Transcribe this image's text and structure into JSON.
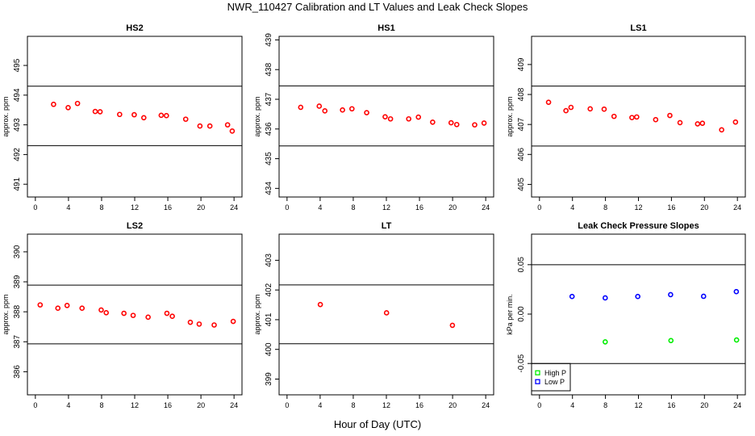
{
  "figure": {
    "title": "NWR_110427  Calibration and LT Values and Leak Check Slopes",
    "xlabel": "Hour of Day (UTC)"
  },
  "colors": {
    "cal_points": "#ff0000",
    "high_p": "#00ee00",
    "low_p": "#0000ff",
    "limit_lines": "#000000"
  },
  "chart_data": [
    {
      "type": "scatter",
      "title": "HS2",
      "ylabel": "approx. ppm",
      "xlim": [
        0,
        24
      ],
      "xticks": [
        "0",
        "4",
        "8",
        "12",
        "16",
        "20",
        "24"
      ],
      "ylim": [
        490.57,
        495.98
      ],
      "yticks": [
        "491",
        "492",
        "493",
        "494",
        "495"
      ],
      "limit_lines": [
        494.3,
        492.3
      ],
      "grid": false,
      "series": [
        {
          "color": "#ff0000",
          "x": [
            2.2,
            3.96,
            5.09,
            7.23,
            7.82,
            10.18,
            11.94,
            13.1,
            15.2,
            15.83,
            18.16,
            19.88,
            21.08,
            23.22,
            23.78
          ],
          "y": [
            493.69,
            493.58,
            493.72,
            493.45,
            493.44,
            493.35,
            493.34,
            493.24,
            493.32,
            493.31,
            493.19,
            492.96,
            492.96,
            493.0,
            492.79
          ]
        }
      ]
    },
    {
      "type": "scatter",
      "title": "HS1",
      "ylabel": "approx. ppm",
      "xlim": [
        0,
        24
      ],
      "xticks": [
        "0",
        "4",
        "8",
        "12",
        "16",
        "20",
        "24"
      ],
      "ylim": [
        433.71,
        439.12
      ],
      "yticks": [
        "434",
        "435",
        "436",
        "437",
        "438",
        "439"
      ],
      "limit_lines": [
        437.45,
        435.43
      ],
      "grid": false,
      "series": [
        {
          "color": "#ff0000",
          "x": [
            1.65,
            3.89,
            4.57,
            6.7,
            7.84,
            9.62,
            11.85,
            12.5,
            14.7,
            15.87,
            17.59,
            19.82,
            20.5,
            22.67,
            23.8
          ],
          "y": [
            436.73,
            436.77,
            436.61,
            436.64,
            436.68,
            436.55,
            436.41,
            436.34,
            436.34,
            436.4,
            436.23,
            436.21,
            436.15,
            436.14,
            436.2
          ]
        }
      ]
    },
    {
      "type": "scatter",
      "title": "LS1",
      "ylabel": "approx. ppm",
      "xlim": [
        0,
        24
      ],
      "xticks": [
        "0",
        "4",
        "8",
        "12",
        "16",
        "20",
        "24"
      ],
      "ylim": [
        404.58,
        409.94
      ],
      "yticks": [
        "405",
        "406",
        "407",
        "408",
        "409"
      ],
      "limit_lines": [
        408.28,
        406.28
      ],
      "grid": false,
      "series": [
        {
          "color": "#ff0000",
          "x": [
            1.1,
            3.21,
            3.82,
            6.15,
            7.84,
            9.04,
            11.21,
            11.79,
            14.09,
            15.81,
            17.04,
            19.17,
            19.76,
            22.09,
            23.77
          ],
          "y": [
            407.74,
            407.46,
            407.57,
            407.52,
            407.51,
            407.27,
            407.23,
            407.25,
            407.16,
            407.3,
            407.06,
            407.02,
            407.04,
            406.82,
            407.08
          ]
        }
      ]
    },
    {
      "type": "scatter",
      "title": "LS2",
      "ylabel": "approx. ppm",
      "xlim": [
        0,
        24
      ],
      "xticks": [
        "0",
        "4",
        "8",
        "12",
        "16",
        "20",
        "24"
      ],
      "ylim": [
        385.23,
        390.59
      ],
      "yticks": [
        "386",
        "387",
        "388",
        "389",
        "390"
      ],
      "limit_lines": [
        388.89,
        386.93
      ],
      "grid": false,
      "series": [
        {
          "color": "#ff0000",
          "x": [
            0.58,
            2.72,
            3.83,
            5.64,
            7.95,
            8.56,
            10.7,
            11.81,
            13.62,
            15.89,
            16.54,
            18.72,
            19.79,
            21.6,
            23.9
          ],
          "y": [
            388.23,
            388.12,
            388.21,
            388.12,
            388.06,
            387.97,
            387.95,
            387.88,
            387.82,
            387.95,
            387.85,
            387.65,
            387.59,
            387.56,
            387.68
          ]
        }
      ]
    },
    {
      "type": "scatter",
      "title": "LT",
      "ylabel": "approx. ppm",
      "xlim": [
        0,
        24
      ],
      "xticks": [
        "0",
        "4",
        "8",
        "12",
        "16",
        "20",
        "24"
      ],
      "ylim": [
        398.47,
        403.88
      ],
      "yticks": [
        "399",
        "400",
        "401",
        "402",
        "403"
      ],
      "limit_lines": [
        402.17,
        400.19
      ],
      "grid": false,
      "series": [
        {
          "color": "#ff0000",
          "x": [
            4.02,
            12.02,
            19.98
          ],
          "y": [
            401.51,
            401.23,
            400.81
          ]
        }
      ]
    },
    {
      "type": "scatter",
      "title": "Leak Check Pressure Slopes",
      "ylabel": "kPa per min.",
      "xlim": [
        0,
        24
      ],
      "xticks": [
        "0",
        "4",
        "8",
        "12",
        "16",
        "20",
        "24"
      ],
      "ylim": [
        -0.0817,
        0.0809
      ],
      "yticks": [
        "-0.05",
        "0.00",
        "0.05"
      ],
      "limit_lines": [
        0.05,
        -0.05
      ],
      "grid": false,
      "legend_position": "bottom-left",
      "series": [
        {
          "name": "High P",
          "color": "#00ee00",
          "x": [
            7.97,
            15.94,
            23.9
          ],
          "y": [
            -0.0281,
            -0.0268,
            -0.0262
          ]
        },
        {
          "name": "Low P",
          "color": "#0000ff",
          "x": [
            3.95,
            7.97,
            11.92,
            15.9,
            19.9,
            23.87
          ],
          "y": [
            0.0178,
            0.0164,
            0.0178,
            0.0197,
            0.018,
            0.0227
          ]
        }
      ]
    }
  ]
}
